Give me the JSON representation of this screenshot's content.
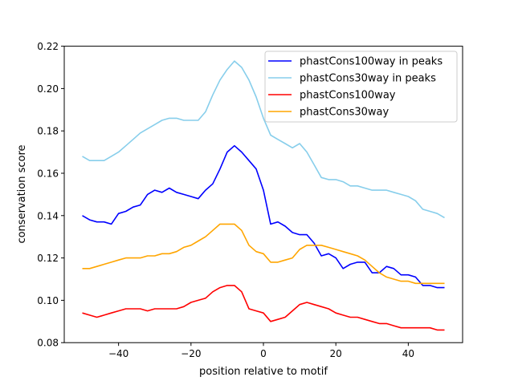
{
  "chart_data": {
    "type": "line",
    "title": "",
    "xlabel": "position relative to motif",
    "ylabel": "conservation score",
    "xlim": [
      -55,
      55
    ],
    "ylim": [
      0.08,
      0.22
    ],
    "xticks": [
      -40,
      -20,
      0,
      20,
      40
    ],
    "xtick_labels": [
      "−40",
      "−20",
      "0",
      "20",
      "40"
    ],
    "yticks": [
      0.08,
      0.1,
      0.12,
      0.14,
      0.16,
      0.18,
      0.2,
      0.22
    ],
    "ytick_labels": [
      "0.08",
      "0.10",
      "0.12",
      "0.14",
      "0.16",
      "0.18",
      "0.20",
      "0.22"
    ],
    "grid": false,
    "legend_position": "top-right",
    "x": [
      -50,
      -48,
      -46,
      -44,
      -42,
      -40,
      -38,
      -36,
      -34,
      -32,
      -30,
      -28,
      -26,
      -24,
      -22,
      -20,
      -18,
      -16,
      -14,
      -12,
      -10,
      -8,
      -6,
      -4,
      -2,
      0,
      2,
      4,
      6,
      8,
      10,
      12,
      14,
      16,
      18,
      20,
      22,
      24,
      26,
      28,
      30,
      32,
      34,
      36,
      38,
      40,
      42,
      44,
      46,
      48,
      50
    ],
    "series": [
      {
        "name": "phastCons100way in peaks",
        "color": "#0000ff",
        "values": [
          0.14,
          0.138,
          0.137,
          0.137,
          0.136,
          0.141,
          0.142,
          0.144,
          0.145,
          0.15,
          0.152,
          0.151,
          0.153,
          0.151,
          0.15,
          0.149,
          0.148,
          0.152,
          0.155,
          0.162,
          0.17,
          0.173,
          0.17,
          0.166,
          0.162,
          0.152,
          0.136,
          0.137,
          0.135,
          0.132,
          0.131,
          0.131,
          0.127,
          0.121,
          0.122,
          0.12,
          0.115,
          0.117,
          0.118,
          0.118,
          0.113,
          0.113,
          0.116,
          0.115,
          0.112,
          0.112,
          0.111,
          0.107,
          0.107,
          0.106,
          0.106
        ]
      },
      {
        "name": "phastCons30way in peaks",
        "color": "#87ceeb",
        "values": [
          0.168,
          0.166,
          0.166,
          0.166,
          0.168,
          0.17,
          0.173,
          0.176,
          0.179,
          0.181,
          0.183,
          0.185,
          0.186,
          0.186,
          0.185,
          0.185,
          0.185,
          0.189,
          0.197,
          0.204,
          0.209,
          0.213,
          0.21,
          0.204,
          0.196,
          0.186,
          0.178,
          0.176,
          0.174,
          0.172,
          0.174,
          0.17,
          0.164,
          0.158,
          0.157,
          0.157,
          0.156,
          0.154,
          0.154,
          0.153,
          0.152,
          0.152,
          0.152,
          0.151,
          0.15,
          0.149,
          0.147,
          0.143,
          0.142,
          0.141,
          0.139
        ]
      },
      {
        "name": "phastCons100way",
        "color": "#ff0000",
        "values": [
          0.094,
          0.093,
          0.092,
          0.093,
          0.094,
          0.095,
          0.096,
          0.096,
          0.096,
          0.095,
          0.096,
          0.096,
          0.096,
          0.096,
          0.097,
          0.099,
          0.1,
          0.101,
          0.104,
          0.106,
          0.107,
          0.107,
          0.104,
          0.096,
          0.095,
          0.094,
          0.09,
          0.091,
          0.092,
          0.095,
          0.098,
          0.099,
          0.098,
          0.097,
          0.096,
          0.094,
          0.093,
          0.092,
          0.092,
          0.091,
          0.09,
          0.089,
          0.089,
          0.088,
          0.087,
          0.087,
          0.087,
          0.087,
          0.087,
          0.086,
          0.086
        ]
      },
      {
        "name": "phastCons30way",
        "color": "#ffa500",
        "values": [
          0.115,
          0.115,
          0.116,
          0.117,
          0.118,
          0.119,
          0.12,
          0.12,
          0.12,
          0.121,
          0.121,
          0.122,
          0.122,
          0.123,
          0.125,
          0.126,
          0.128,
          0.13,
          0.133,
          0.136,
          0.136,
          0.136,
          0.133,
          0.126,
          0.123,
          0.122,
          0.118,
          0.118,
          0.119,
          0.12,
          0.124,
          0.126,
          0.126,
          0.126,
          0.125,
          0.124,
          0.123,
          0.122,
          0.121,
          0.119,
          0.116,
          0.113,
          0.111,
          0.11,
          0.109,
          0.109,
          0.108,
          0.108,
          0.108,
          0.108,
          0.108
        ]
      }
    ]
  }
}
